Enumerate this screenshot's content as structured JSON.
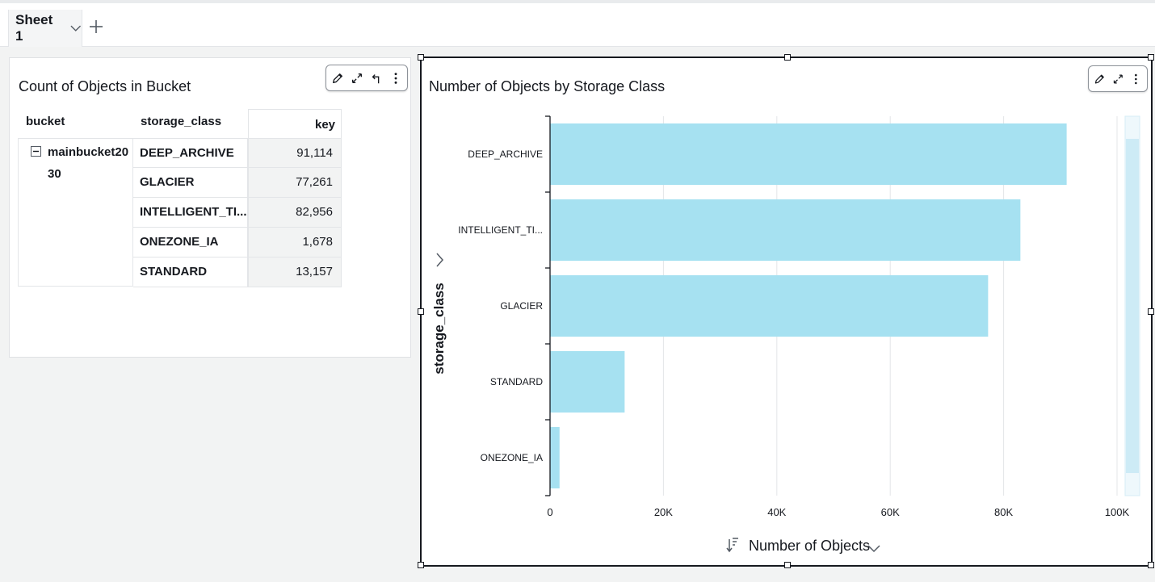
{
  "sheet_tab": {
    "label": "Sheet 1"
  },
  "table_visual": {
    "title": "Count of Objects in Bucket",
    "columns": [
      "bucket",
      "storage_class",
      "key"
    ],
    "bucket_name_line1": "mainbucket20",
    "bucket_name_line2": "30",
    "rows": [
      {
        "storage_class": "DEEP_ARCHIVE",
        "key": "91,114"
      },
      {
        "storage_class": "GLACIER",
        "key": "77,261"
      },
      {
        "storage_class": "INTELLIGENT_TI...",
        "key": "82,956"
      },
      {
        "storage_class": "ONEZONE_IA",
        "key": "1,678"
      },
      {
        "storage_class": "STANDARD",
        "key": "13,157"
      }
    ]
  },
  "chart_visual": {
    "title": "Number of Objects by Storage Class",
    "bar_color": "#a6e1f1"
  },
  "chart_data": {
    "type": "bar",
    "orientation": "horizontal",
    "title": "Number of Objects by Storage Class",
    "categories": [
      "DEEP_ARCHIVE",
      "INTELLIGENT_TI...",
      "GLACIER",
      "STANDARD",
      "ONEZONE_IA"
    ],
    "values": [
      91114,
      82956,
      77261,
      13157,
      1678
    ],
    "xlabel": "Number of Objects",
    "ylabel": "storage_class",
    "xlim": [
      0,
      100000
    ],
    "xticks": [
      "0",
      "20K",
      "40K",
      "60K",
      "80K",
      "100K"
    ],
    "grid": true
  }
}
